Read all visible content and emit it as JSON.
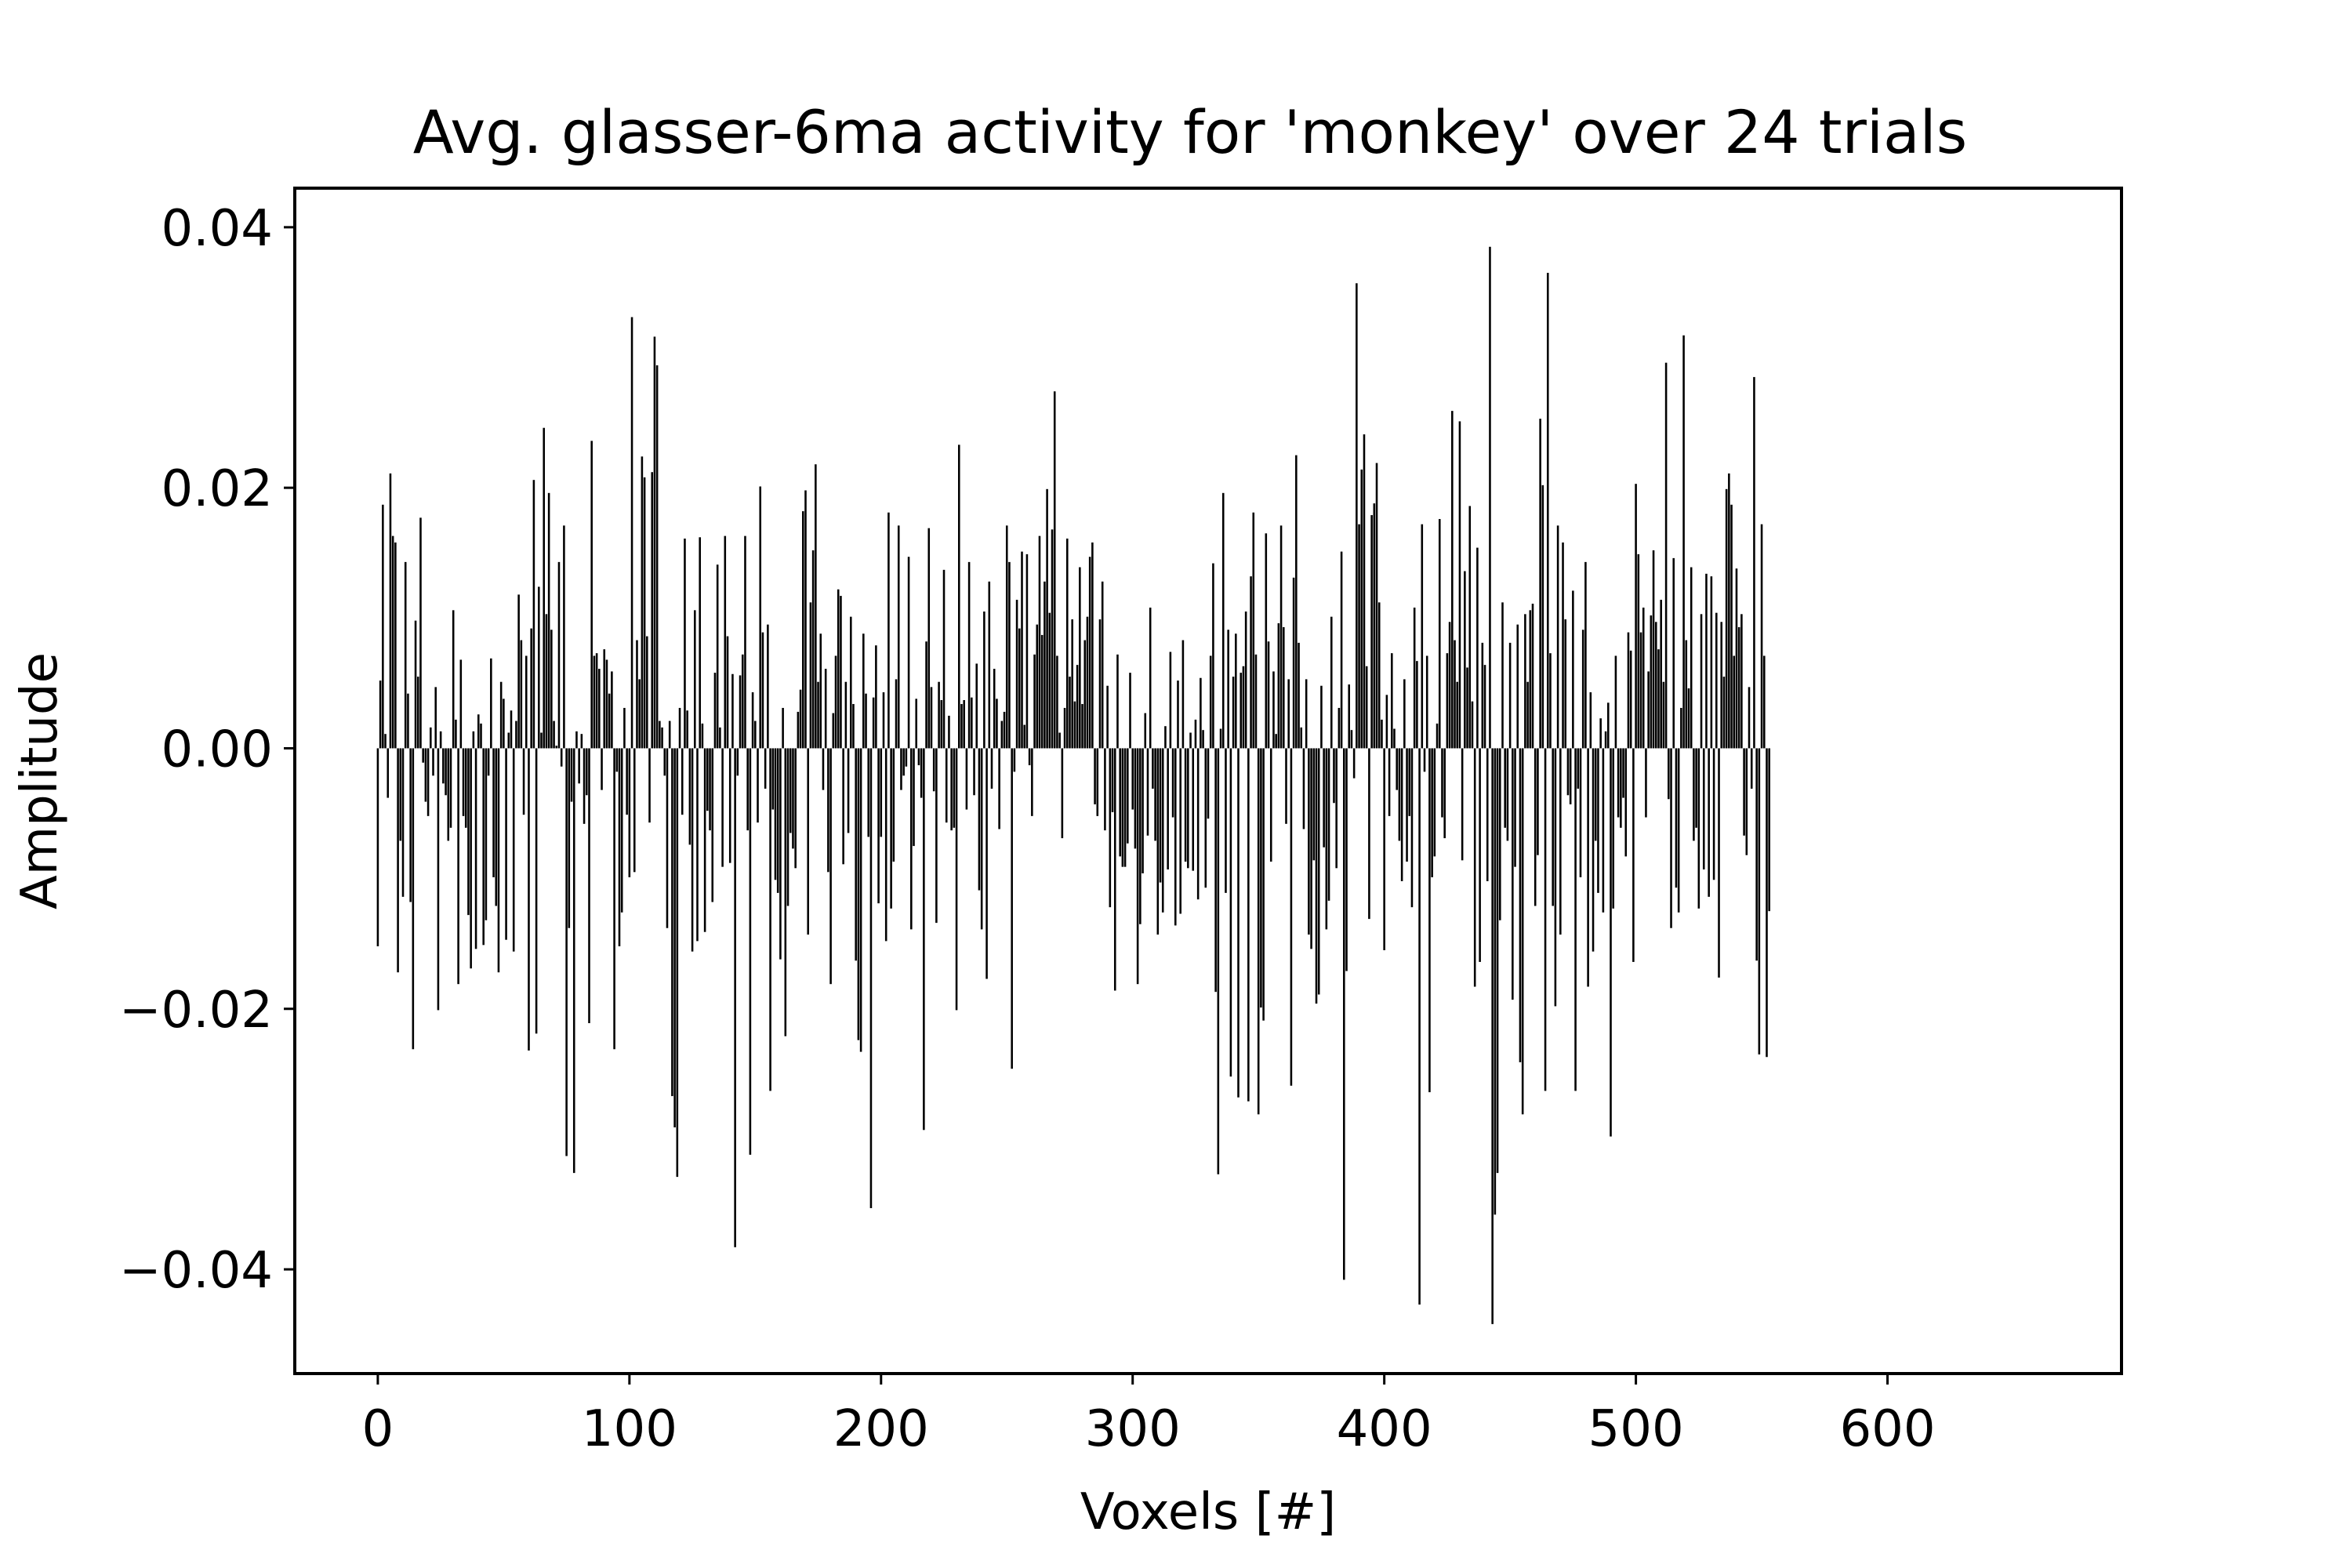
{
  "chart_data": {
    "type": "bar",
    "title": "Avg. glasser-6ma activity for 'monkey' over 24 trials",
    "xlabel": "Voxels [#]",
    "ylabel": "Amplitude",
    "xlim": [
      -33,
      693
    ],
    "ylim": [
      -0.048,
      0.043
    ],
    "xticks": [
      0,
      100,
      200,
      300,
      400,
      500,
      600
    ],
    "xtick_labels": [
      "0",
      "100",
      "200",
      "300",
      "400",
      "500",
      "600"
    ],
    "yticks": [
      -0.04,
      -0.02,
      0.0,
      0.02,
      0.04
    ],
    "ytick_labels": [
      "−0.04",
      "−0.02",
      "0.00",
      "0.02",
      "0.04"
    ],
    "grid": false,
    "bar_color": "#000000",
    "series": [
      {
        "x_start": 0,
        "values": [
          -0.0152,
          0.0052,
          0.0187,
          0.0011,
          -0.0038,
          0.0211,
          0.0163,
          0.0158,
          -0.0172,
          -0.0071,
          -0.0114,
          0.0143,
          0.0042,
          -0.0118,
          -0.0231,
          0.0098,
          0.0055,
          0.0177,
          -0.0011,
          -0.0041,
          -0.0052,
          0.0016,
          -0.0021,
          0.0047,
          -0.0201,
          0.0013,
          -0.0027,
          -0.0036,
          -0.0071,
          -0.0061,
          0.0106,
          0.0022,
          -0.0181,
          0.0068,
          -0.0052,
          -0.0061,
          -0.0128,
          -0.0169,
          0.0013,
          -0.0154,
          0.0026,
          0.0019,
          -0.0151,
          -0.0132,
          -0.0021,
          0.0069,
          -0.0099,
          -0.0121,
          -0.0172,
          0.0051,
          0.0038,
          -0.0147,
          0.0012,
          0.0029,
          -0.0156,
          0.0021,
          0.0118,
          0.0083,
          -0.0051,
          0.0071,
          -0.0232,
          0.0092,
          0.0206,
          -0.0219,
          0.0124,
          0.0012,
          0.0246,
          0.0103,
          0.0196,
          0.0091,
          0.0021,
          0.0002,
          0.0143,
          -0.0014,
          0.0171,
          -0.0313,
          -0.0138,
          -0.0041,
          -0.0326,
          0.0013,
          -0.0027,
          0.0011,
          -0.0058,
          -0.0036,
          -0.0211,
          0.0236,
          0.0071,
          0.0073,
          0.0061,
          -0.0032,
          0.0076,
          0.0068,
          0.0042,
          0.0059,
          -0.0231,
          -0.0018,
          -0.0152,
          -0.0126,
          0.0031,
          -0.0051,
          -0.0099,
          0.0331,
          -0.0095,
          0.0083,
          0.0053,
          0.0224,
          0.0208,
          0.0086,
          -0.0057,
          0.0212,
          0.0316,
          0.0294,
          0.0021,
          0.0016,
          -0.0021,
          -0.0138,
          0.0021,
          -0.0267,
          -0.0291,
          -0.0329,
          0.0031,
          -0.0051,
          0.0161,
          0.0029,
          -0.0074,
          -0.0156,
          0.0106,
          -0.0148,
          0.0162,
          0.0019,
          -0.0141,
          -0.0048,
          -0.0063,
          -0.0118,
          0.0058,
          0.0141,
          0.0016,
          -0.0091,
          0.0163,
          0.0086,
          -0.0088,
          0.0057,
          -0.0383,
          -0.0021,
          0.0056,
          0.0072,
          0.0163,
          -0.0063,
          -0.0312,
          0.0043,
          0.0021,
          -0.0057,
          0.0201,
          0.0089,
          -0.0031,
          0.0095,
          -0.0263,
          -0.0047,
          -0.0101,
          -0.0111,
          -0.0162,
          0.0031,
          -0.0221,
          -0.0121,
          -0.0065,
          -0.0077,
          -0.0092,
          0.0028,
          0.0045,
          0.0182,
          0.0198,
          -0.0143,
          0.0112,
          0.0152,
          0.0218,
          0.0051,
          0.0088,
          -0.0032,
          0.0061,
          -0.0095,
          -0.0181,
          0.0027,
          0.0071,
          0.0122,
          0.0117,
          -0.0089,
          0.0051,
          -0.0065,
          0.0101,
          0.0034,
          -0.0163,
          -0.0224,
          -0.0233,
          0.0088,
          0.0042,
          -0.0068,
          -0.0353,
          0.0039,
          0.0079,
          -0.0119,
          -0.0068,
          0.0043,
          -0.0148,
          0.0181,
          -0.0123,
          -0.0087,
          0.0053,
          0.0171,
          -0.0032,
          -0.0021,
          -0.0014,
          0.0147,
          -0.0139,
          -0.0075,
          0.0038,
          -0.0013,
          -0.0038,
          -0.0293,
          0.0082,
          0.0169,
          0.0047,
          -0.0033,
          -0.0134,
          0.0051,
          0.0037,
          0.0137,
          -0.0057,
          0.0025,
          -0.0063,
          -0.0061,
          -0.0201,
          0.0233,
          0.0034,
          0.0037,
          -0.0047,
          0.0143,
          0.0039,
          -0.0036,
          0.0065,
          -0.0109,
          -0.0139,
          0.0105,
          -0.0177,
          0.0128,
          -0.0031,
          0.0061,
          0.0038,
          -0.0062,
          0.0021,
          0.0028,
          0.0171,
          0.0143,
          -0.0246,
          -0.0018,
          0.0114,
          0.0092,
          0.0151,
          0.0018,
          0.0149,
          -0.0013,
          -0.0052,
          0.0072,
          0.0095,
          0.0163,
          0.0087,
          0.0128,
          0.0199,
          0.0104,
          0.0168,
          0.0274,
          0.0071,
          0.0012,
          -0.0069,
          0.0031,
          0.0161,
          0.0055,
          0.0099,
          0.0036,
          0.0064,
          0.0139,
          0.0034,
          0.0083,
          0.0101,
          0.0147,
          0.0158,
          -0.0043,
          -0.0052,
          0.0099,
          0.0128,
          -0.0063,
          0.0048,
          -0.0122,
          -0.0049,
          -0.0186,
          0.0072,
          -0.0083,
          -0.0091,
          -0.0091,
          -0.0073,
          0.0058,
          -0.0047,
          -0.0077,
          -0.0181,
          -0.0135,
          -0.0096,
          0.0027,
          -0.0067,
          0.0108,
          -0.0031,
          -0.0071,
          -0.0143,
          -0.0103,
          -0.0126,
          0.0017,
          -0.0093,
          0.0074,
          -0.0053,
          -0.0136,
          0.0052,
          -0.0127,
          0.0083,
          -0.0087,
          -0.0092,
          0.0012,
          -0.0094,
          0.0022,
          -0.0116,
          0.0054,
          0.0014,
          -0.0107,
          -0.0054,
          0.0071,
          0.0142,
          -0.0187,
          -0.0327,
          0.0015,
          0.0196,
          -0.0111,
          0.0091,
          -0.0252,
          0.0055,
          0.0088,
          -0.0268,
          0.0058,
          0.0063,
          0.0105,
          -0.0271,
          0.0132,
          0.0181,
          0.0072,
          -0.0281,
          -0.0199,
          -0.0209,
          0.0165,
          0.0082,
          -0.0087,
          0.0059,
          0.0011,
          0.0096,
          0.0171,
          0.0093,
          -0.0058,
          0.0053,
          -0.0259,
          0.0131,
          0.0225,
          0.0081,
          0.0016,
          -0.0062,
          0.0053,
          -0.0143,
          -0.0154,
          -0.0086,
          -0.0196,
          -0.0189,
          0.0048,
          -0.0076,
          -0.0139,
          -0.0117,
          0.0101,
          -0.0042,
          -0.0092,
          0.0031,
          0.0151,
          -0.0408,
          -0.0171,
          0.0049,
          0.0014,
          -0.0023,
          0.0357,
          0.0172,
          0.0214,
          0.0241,
          0.0063,
          -0.0131,
          0.0179,
          0.0188,
          0.0219,
          0.0112,
          0.0022,
          -0.0155,
          0.0041,
          -0.0052,
          0.0073,
          0.0015,
          -0.0032,
          -0.0071,
          -0.0102,
          0.0053,
          -0.0087,
          -0.0052,
          -0.0122,
          0.0108,
          0.0067,
          -0.0427,
          0.0172,
          -0.0018,
          0.0071,
          -0.0264,
          -0.0099,
          -0.0083,
          0.0019,
          0.0176,
          -0.0053,
          -0.0069,
          0.0073,
          0.0097,
          0.0259,
          0.0083,
          0.0051,
          0.0251,
          -0.0086,
          0.0136,
          0.0062,
          0.0186,
          0.0036,
          -0.0183,
          0.0154,
          -0.0164,
          0.0081,
          0.0064,
          -0.0102,
          0.0385,
          -0.0442,
          -0.0358,
          -0.0326,
          -0.0132,
          0.0112,
          -0.0061,
          -0.0071,
          0.0081,
          -0.0193,
          -0.0091,
          0.0095,
          -0.0241,
          -0.0281,
          0.0103,
          0.0051,
          0.0106,
          0.0111,
          -0.0121,
          -0.0082,
          0.0253,
          0.0202,
          -0.0263,
          0.0365,
          0.0073,
          -0.0121,
          -0.0198,
          0.0171,
          -0.0143,
          0.0158,
          0.0099,
          -0.0036,
          -0.0043,
          0.0121,
          -0.0263,
          -0.0031,
          -0.0099,
          0.0091,
          0.0143,
          -0.0183,
          0.0043,
          -0.0156,
          -0.0071,
          -0.0111,
          0.0023,
          -0.0126,
          0.0013,
          0.0035,
          -0.0298,
          -0.0123,
          0.0071,
          -0.0053,
          -0.0061,
          -0.0038,
          -0.0083,
          0.0089,
          0.0075,
          -0.0164,
          0.0203,
          0.0149,
          0.0089,
          0.0108,
          -0.0053,
          0.0059,
          0.0102,
          0.0152,
          0.0097,
          0.0076,
          0.0114,
          0.0051,
          0.0296,
          -0.0039,
          -0.0138,
          0.0146,
          -0.0107,
          -0.0126,
          0.0031,
          0.0317,
          0.0083,
          0.0046,
          0.0139,
          -0.0071,
          -0.0061,
          -0.0123,
          0.0103,
          -0.0093,
          0.0134,
          -0.0114,
          0.0132,
          -0.0101,
          0.0104,
          -0.0176,
          0.0097,
          0.0055,
          0.0199,
          0.0211,
          0.0187,
          0.0071,
          0.0138,
          0.0093,
          0.0103,
          -0.0067,
          -0.0082,
          0.0047,
          -0.0031,
          0.0285,
          -0.0163,
          -0.0235,
          0.0172,
          0.0071,
          -0.0237,
          -0.0125
        ]
      }
    ]
  }
}
